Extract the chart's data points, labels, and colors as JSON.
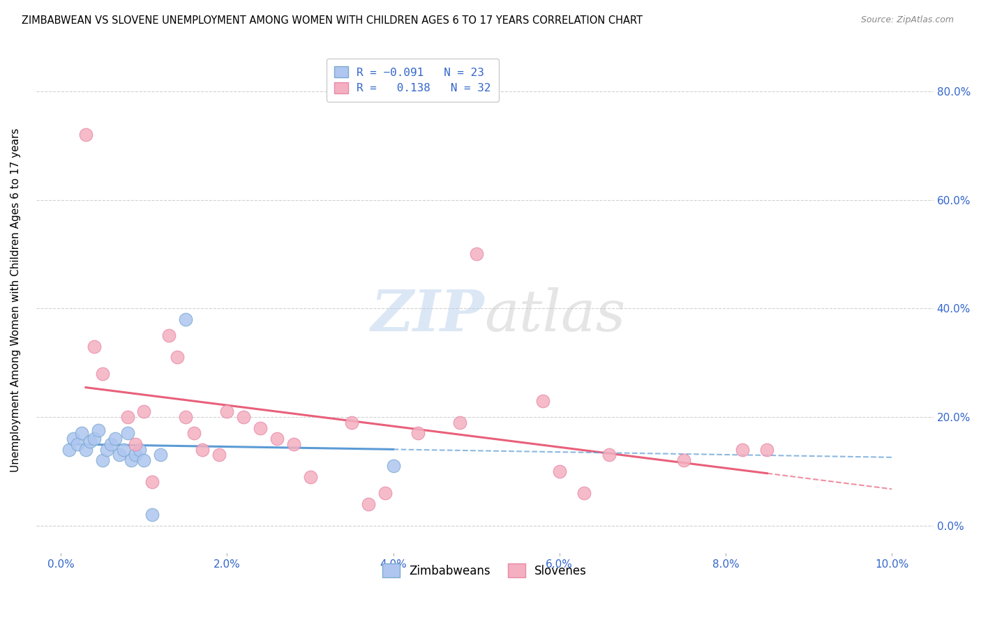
{
  "title": "ZIMBABWEAN VS SLOVENE UNEMPLOYMENT AMONG WOMEN WITH CHILDREN AGES 6 TO 17 YEARS CORRELATION CHART",
  "source": "Source: ZipAtlas.com",
  "ylabel": "Unemployment Among Women with Children Ages 6 to 17 years",
  "xlim": [
    -0.3,
    10.5
  ],
  "ylim": [
    -5.0,
    88.0
  ],
  "xticks": [
    0.0,
    2.0,
    4.0,
    6.0,
    8.0,
    10.0
  ],
  "yticks": [
    0.0,
    20.0,
    40.0,
    60.0,
    80.0
  ],
  "zimbabwean_x": [
    0.1,
    0.15,
    0.2,
    0.25,
    0.3,
    0.35,
    0.4,
    0.45,
    0.5,
    0.55,
    0.6,
    0.65,
    0.7,
    0.75,
    0.8,
    0.85,
    0.9,
    0.95,
    1.0,
    1.1,
    1.2,
    1.5,
    4.0
  ],
  "zimbabwean_y": [
    14.0,
    16.0,
    15.0,
    17.0,
    14.0,
    15.5,
    16.0,
    17.5,
    12.0,
    14.0,
    15.0,
    16.0,
    13.0,
    14.0,
    17.0,
    12.0,
    13.0,
    14.0,
    12.0,
    2.0,
    13.0,
    38.0,
    11.0
  ],
  "slovene_x": [
    0.3,
    0.4,
    0.5,
    0.8,
    0.9,
    1.0,
    1.1,
    1.3,
    1.4,
    1.5,
    1.6,
    1.7,
    1.9,
    2.0,
    2.2,
    2.4,
    2.6,
    2.8,
    3.0,
    3.5,
    3.7,
    3.9,
    4.3,
    4.8,
    5.0,
    5.8,
    6.0,
    6.3,
    6.6,
    7.5,
    8.2,
    8.5
  ],
  "slovene_y": [
    72.0,
    33.0,
    28.0,
    20.0,
    15.0,
    21.0,
    8.0,
    35.0,
    31.0,
    20.0,
    17.0,
    14.0,
    13.0,
    21.0,
    20.0,
    18.0,
    16.0,
    15.0,
    9.0,
    19.0,
    4.0,
    6.0,
    17.0,
    19.0,
    50.0,
    23.0,
    10.0,
    6.0,
    13.0,
    12.0,
    14.0,
    14.0
  ],
  "zim_line_color": "#5b9bd5",
  "slov_line_color": "#e8607a",
  "zim_dot_color": "#aec6f0",
  "slov_dot_color": "#f4afc0",
  "zim_dot_edge": "#7baad0",
  "slov_dot_edge": "#e88aaa"
}
